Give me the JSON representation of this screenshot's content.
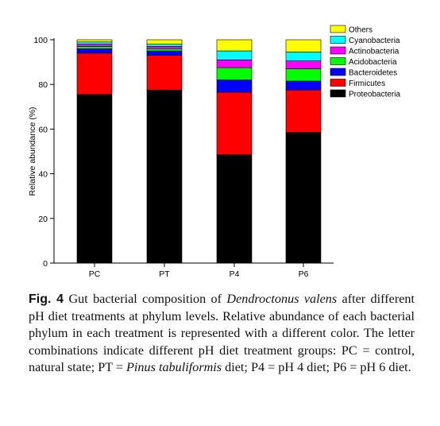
{
  "chart_data": {
    "type": "bar",
    "stacked": true,
    "categories": [
      "PC",
      "PT",
      "P4",
      "P6"
    ],
    "ylabel": "Relative abundance (%)",
    "ylim": [
      0,
      100
    ],
    "yticks": [
      0,
      20,
      40,
      60,
      80,
      100
    ],
    "legend_position": "top-right",
    "series": [
      {
        "name": "Proteobacteria",
        "color": "#000000",
        "values": [
          75.5,
          77.5,
          48.5,
          58.5
        ]
      },
      {
        "name": "Firmicutes",
        "color": "#ff0000",
        "values": [
          18.5,
          15.5,
          28.0,
          19.0
        ]
      },
      {
        "name": "Bacteroidetes",
        "color": "#0000ff",
        "values": [
          2.0,
          2.0,
          5.5,
          4.0
        ]
      },
      {
        "name": "Acidobacteria",
        "color": "#00ff00",
        "values": [
          1.0,
          1.0,
          5.5,
          5.5
        ]
      },
      {
        "name": "Actinobacteria",
        "color": "#ff00ff",
        "values": [
          1.0,
          1.0,
          3.5,
          3.5
        ]
      },
      {
        "name": "Cyanobacteria",
        "color": "#00ffff",
        "values": [
          1.0,
          1.0,
          4.0,
          4.0
        ]
      },
      {
        "name": "Others",
        "color": "#ffff00",
        "values": [
          1.0,
          2.0,
          5.0,
          5.5
        ]
      }
    ],
    "legend_order": [
      "Others",
      "Cyanobacteria",
      "Actinobacteria",
      "Acidobacteria",
      "Bacteroidetes",
      "Firmicutes",
      "Proteobacteria"
    ]
  },
  "caption": {
    "label": "Fig. 4",
    "part1": "Gut bacterial composition of ",
    "species": "Dendroctonus valens",
    "part2": " after different pH diet treatments at phylum levels. Relative abundance of each bacterial phylum in each treatment is represented with a different color. The letter combinations indicate different pH diet treatment groups: PC = control, natural state; PT = ",
    "pinus": "Pinus tabuliformis",
    "part3": " diet; P4 = pH 4 diet; P6 = pH 6 diet."
  }
}
